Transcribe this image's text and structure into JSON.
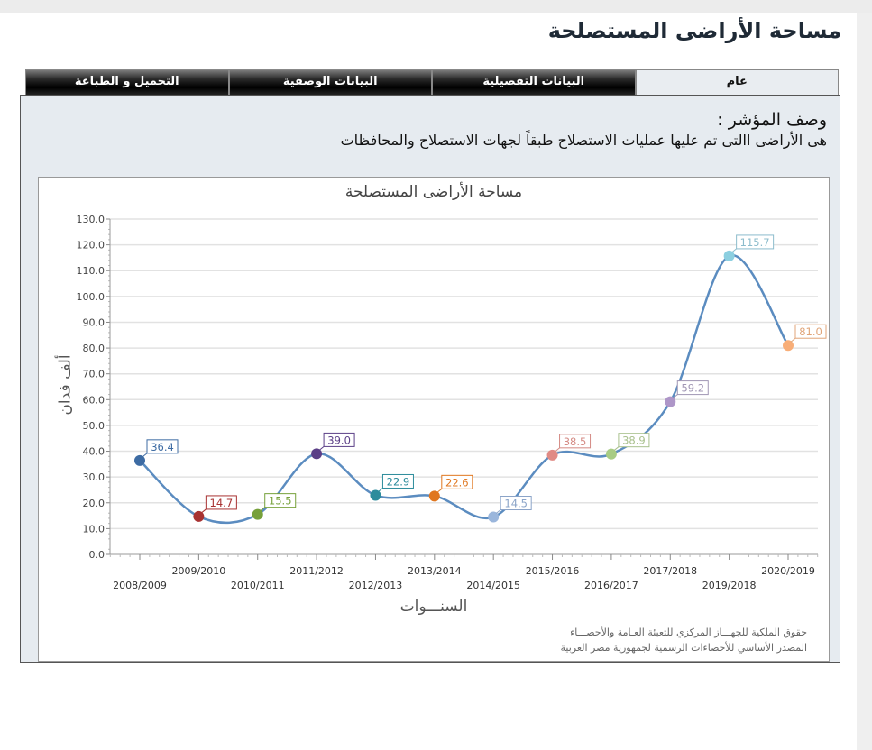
{
  "page": {
    "title": "مساحة الأراضى المستصلحة"
  },
  "tabs": [
    {
      "label": "عام",
      "active": true
    },
    {
      "label": "البيانات التفصيلية",
      "active": false
    },
    {
      "label": "البيانات الوصفية",
      "active": false
    },
    {
      "label": "التحميل و الطباعة",
      "active": false
    }
  ],
  "indicator": {
    "heading": "وصف المؤشر :",
    "text": "هى الأراضى االتى تم عليها عمليات الاستصلاح طبقاً لجهات الاستصلاح والمحافظات"
  },
  "footer": {
    "line1": "حقوق الملكية للجهـــاز المركزي للتعبئة العـامة والأحصـــاء",
    "line2": "المصدر الأساسي للأحصاءات الرسمية لجمهورية مصر العربية"
  },
  "chart_data": {
    "type": "line",
    "title": "مساحة الأراضى المستصلحة",
    "xlabel": "السنـــوات",
    "ylabel": "ألف فدان",
    "ylim": [
      0,
      130
    ],
    "yticks": [
      "0.0",
      "10.0",
      "20.0",
      "30.0",
      "40.0",
      "50.0",
      "60.0",
      "70.0",
      "80.0",
      "90.0",
      "100.0",
      "110.0",
      "120.0",
      "130.0"
    ],
    "grid": true,
    "smooth": true,
    "line_color": "#5b8cc0",
    "categories": [
      "2008/2009",
      "2009/2010",
      "2010/2011",
      "2011/2012",
      "2012/2013",
      "2013/2014",
      "2014/2015",
      "2015/2016",
      "2016/2017",
      "2017/2018",
      "2019/2018",
      "2020/2019"
    ],
    "values": [
      36.4,
      14.7,
      15.5,
      39.0,
      22.9,
      22.6,
      14.5,
      38.5,
      38.9,
      59.2,
      115.7,
      81.0
    ],
    "labels": [
      "36.4",
      "14.7",
      "15.5",
      "39.0",
      "22.9",
      "22.6",
      "14.5",
      "38.5",
      "38.9",
      "59.2",
      "115.7",
      "81.0"
    ],
    "point_colors": [
      "#3d6ba3",
      "#a83232",
      "#76a03a",
      "#5b3f87",
      "#2d8c9c",
      "#e0761e",
      "#9ab6dc",
      "#e08a84",
      "#a8cc84",
      "#ae96c8",
      "#8ccfe0",
      "#f8ae78"
    ],
    "label_colors": [
      "#3d6ba3",
      "#a83232",
      "#76a03a",
      "#5b3f87",
      "#2d8c9c",
      "#e0761e",
      "#8ba4c8",
      "#d48a84",
      "#a8c08c",
      "#a096b4",
      "#8cbccc",
      "#e0a478"
    ]
  }
}
